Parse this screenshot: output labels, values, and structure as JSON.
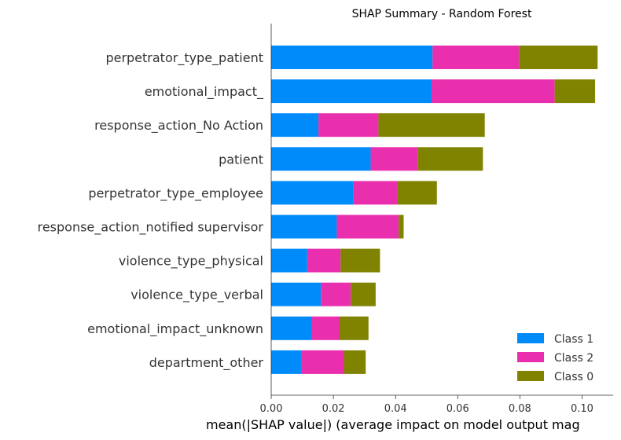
{
  "chart_data": {
    "type": "bar",
    "orientation": "horizontal",
    "stacked": true,
    "title": "SHAP Summary - Random Forest",
    "xlabel": "mean(|SHAP value|) (average impact on model output mag",
    "ylabel": "",
    "xlim": [
      0.0,
      0.11
    ],
    "xticks": [
      "0.00",
      "0.02",
      "0.04",
      "0.06",
      "0.08",
      "0.10"
    ],
    "grid": false,
    "legend_position": "bottom-right",
    "categories": [
      "perpetrator_type_patient",
      "emotional_impact_",
      "response_action_No Action",
      "patient",
      "perpetrator_type_employee",
      "response_action_notified supervisor",
      "violence_type_physical",
      "violence_type_verbal",
      "emotional_impact_unknown",
      "department_other"
    ],
    "series": [
      {
        "name": "Class 1",
        "color": "#008bfb",
        "values": [
          0.0519,
          0.0516,
          0.0152,
          0.032,
          0.0265,
          0.0211,
          0.0116,
          0.016,
          0.0129,
          0.0096
        ]
      },
      {
        "name": "Class 2",
        "color": "#e92fad",
        "values": [
          0.0278,
          0.0396,
          0.0193,
          0.0152,
          0.0142,
          0.0199,
          0.0107,
          0.0096,
          0.0091,
          0.0138
        ]
      },
      {
        "name": "Class 0",
        "color": "#808300",
        "values": [
          0.0253,
          0.013,
          0.0342,
          0.0209,
          0.0126,
          0.0016,
          0.0127,
          0.008,
          0.0093,
          0.007
        ]
      }
    ]
  }
}
